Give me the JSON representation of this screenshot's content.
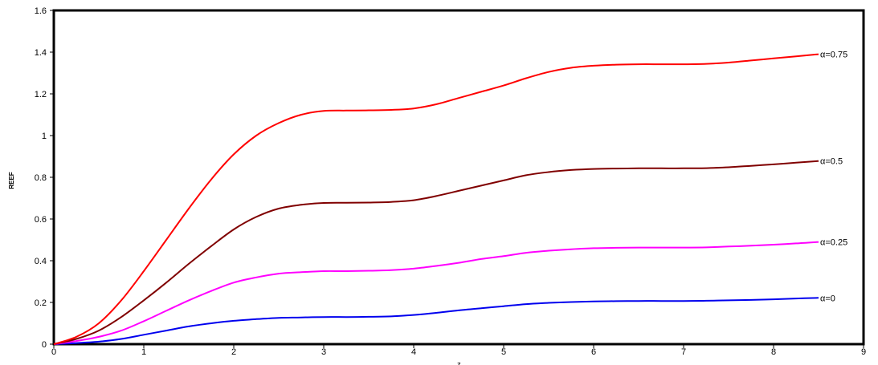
{
  "chart_data": {
    "type": "line",
    "title": "",
    "xlabel": "ζ",
    "ylabel": "REEF",
    "xlim": [
      0,
      9
    ],
    "ylim": [
      0,
      1.6
    ],
    "xticks": [
      "0",
      "1",
      "2",
      "3",
      "4",
      "5",
      "6",
      "7",
      "8",
      "9"
    ],
    "yticks": [
      "0",
      "0.2",
      "0.4",
      "0.6",
      "0.8",
      "1",
      "1.2",
      "1.4",
      "1.6"
    ],
    "grid": false,
    "legend": "none",
    "x": [
      0,
      0.25,
      0.5,
      0.75,
      1,
      1.25,
      1.5,
      1.75,
      2,
      2.25,
      2.5,
      2.75,
      3,
      3.25,
      3.5,
      3.75,
      4,
      4.25,
      4.5,
      4.75,
      5,
      5.25,
      5.5,
      5.75,
      6,
      6.25,
      6.5,
      6.75,
      7,
      7.25,
      7.5,
      7.75,
      8,
      8.25,
      8.5
    ],
    "series": [
      {
        "name": "α=0",
        "color": "#0000ee",
        "values": [
          0,
          0.005,
          0.012,
          0.025,
          0.045,
          0.065,
          0.085,
          0.1,
          0.112,
          0.12,
          0.126,
          0.128,
          0.13,
          0.13,
          0.131,
          0.133,
          0.14,
          0.15,
          0.162,
          0.172,
          0.182,
          0.192,
          0.198,
          0.202,
          0.205,
          0.206,
          0.207,
          0.207,
          0.207,
          0.208,
          0.21,
          0.212,
          0.215,
          0.219,
          0.222
        ]
      },
      {
        "name": "α=0.25",
        "color": "#ff00ff",
        "values": [
          0,
          0.015,
          0.035,
          0.065,
          0.11,
          0.16,
          0.21,
          0.255,
          0.295,
          0.32,
          0.338,
          0.345,
          0.35,
          0.35,
          0.352,
          0.355,
          0.362,
          0.375,
          0.39,
          0.408,
          0.422,
          0.438,
          0.448,
          0.455,
          0.46,
          0.462,
          0.463,
          0.463,
          0.463,
          0.464,
          0.468,
          0.472,
          0.477,
          0.483,
          0.49
        ]
      },
      {
        "name": "α=0.5",
        "color": "#800000",
        "values": [
          0,
          0.025,
          0.065,
          0.13,
          0.21,
          0.295,
          0.385,
          0.47,
          0.55,
          0.61,
          0.65,
          0.668,
          0.677,
          0.678,
          0.679,
          0.682,
          0.69,
          0.71,
          0.735,
          0.76,
          0.785,
          0.81,
          0.825,
          0.835,
          0.84,
          0.842,
          0.843,
          0.843,
          0.843,
          0.844,
          0.848,
          0.855,
          0.862,
          0.87,
          0.878
        ]
      },
      {
        "name": "α=0.75",
        "color": "#ff0000",
        "values": [
          0,
          0.035,
          0.1,
          0.21,
          0.35,
          0.5,
          0.65,
          0.79,
          0.91,
          1.0,
          1.06,
          1.1,
          1.118,
          1.12,
          1.121,
          1.123,
          1.13,
          1.15,
          1.18,
          1.21,
          1.24,
          1.275,
          1.305,
          1.325,
          1.335,
          1.34,
          1.342,
          1.342,
          1.342,
          1.344,
          1.35,
          1.36,
          1.37,
          1.38,
          1.39
        ]
      }
    ]
  }
}
